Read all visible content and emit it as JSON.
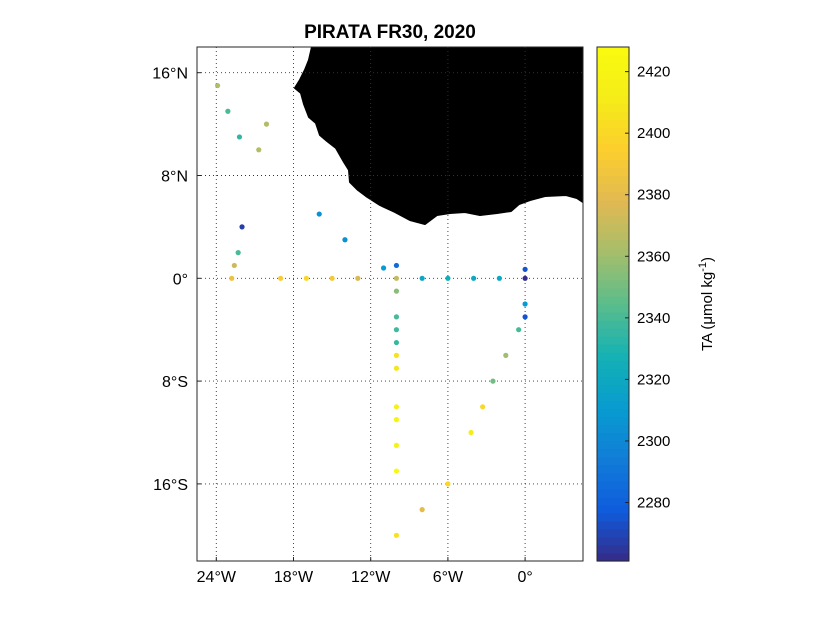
{
  "chart_data": {
    "type": "scatter",
    "title": "PIRATA FR30, 2020",
    "xlabel": "",
    "ylabel": "",
    "xlim": [
      -25.5,
      4.5
    ],
    "ylim": [
      -22,
      18
    ],
    "x_ticks": [
      -24,
      -18,
      -12,
      -6,
      0
    ],
    "x_tick_labels": [
      "24°W",
      "18°W",
      "12°W",
      "6°W",
      "0°"
    ],
    "y_ticks": [
      16,
      8,
      0,
      -8,
      -16
    ],
    "y_tick_labels": [
      "16°N",
      "8°N",
      "0°",
      "8°S",
      "16°S"
    ],
    "grid": true,
    "land_color": "#b3b3b3",
    "colorbar": {
      "label": "TA (μmol kg",
      "label_exp": "-1",
      "label_end": ")",
      "range": [
        2261,
        2428
      ],
      "ticks": [
        2280,
        2300,
        2320,
        2340,
        2360,
        2380,
        2400,
        2420
      ],
      "tick_labels": [
        "2280",
        "2300",
        "2320",
        "2340",
        "2360",
        "2380",
        "2400",
        "2420"
      ],
      "colormap": "parula"
    },
    "points": [
      {
        "lon": -23.9,
        "lat": 15.0,
        "ta": 2365
      },
      {
        "lon": -23.1,
        "lat": 13.0,
        "ta": 2340
      },
      {
        "lon": -22.2,
        "lat": 11.0,
        "ta": 2335
      },
      {
        "lon": -20.1,
        "lat": 12.0,
        "ta": 2365
      },
      {
        "lon": -20.7,
        "lat": 10.0,
        "ta": 2365
      },
      {
        "lon": -22.0,
        "lat": 4.0,
        "ta": 2268
      },
      {
        "lon": -22.3,
        "lat": 2.0,
        "ta": 2340
      },
      {
        "lon": -22.6,
        "lat": 1.0,
        "ta": 2372
      },
      {
        "lon": -22.8,
        "lat": 0.0,
        "ta": 2385
      },
      {
        "lon": -19.0,
        "lat": 0.0,
        "ta": 2392
      },
      {
        "lon": -17.0,
        "lat": 0.0,
        "ta": 2400
      },
      {
        "lon": -15.0,
        "lat": 0.0,
        "ta": 2390
      },
      {
        "lon": -13.0,
        "lat": 0.0,
        "ta": 2375
      },
      {
        "lon": -16.0,
        "lat": 5.0,
        "ta": 2305
      },
      {
        "lon": -14.0,
        "lat": 3.0,
        "ta": 2305
      },
      {
        "lon": -11.0,
        "lat": 0.8,
        "ta": 2310
      },
      {
        "lon": -10.0,
        "lat": 1.0,
        "ta": 2285
      },
      {
        "lon": -10.0,
        "lat": 0.0,
        "ta": 2370
      },
      {
        "lon": -10.0,
        "lat": -1.0,
        "ta": 2355
      },
      {
        "lon": -10.0,
        "lat": -3.0,
        "ta": 2340
      },
      {
        "lon": -10.0,
        "lat": -4.0,
        "ta": 2338
      },
      {
        "lon": -10.0,
        "lat": -5.0,
        "ta": 2336
      },
      {
        "lon": -10.0,
        "lat": -6.0,
        "ta": 2405
      },
      {
        "lon": -10.0,
        "lat": -7.0,
        "ta": 2408
      },
      {
        "lon": -10.0,
        "lat": -10.0,
        "ta": 2418
      },
      {
        "lon": -10.0,
        "lat": -11.0,
        "ta": 2420
      },
      {
        "lon": -10.0,
        "lat": -13.0,
        "ta": 2418
      },
      {
        "lon": -10.0,
        "lat": -15.0,
        "ta": 2425
      },
      {
        "lon": -10.0,
        "lat": -20.0,
        "ta": 2405
      },
      {
        "lon": -8.0,
        "lat": 0.0,
        "ta": 2318
      },
      {
        "lon": -6.0,
        "lat": 0.0,
        "ta": 2325
      },
      {
        "lon": -4.0,
        "lat": 0.0,
        "ta": 2320
      },
      {
        "lon": -2.0,
        "lat": 0.0,
        "ta": 2320
      },
      {
        "lon": 0.0,
        "lat": 0.7,
        "ta": 2275
      },
      {
        "lon": 0.0,
        "lat": 0.0,
        "ta": 2262
      },
      {
        "lon": 0.0,
        "lat": -2.0,
        "ta": 2310
      },
      {
        "lon": 0.0,
        "lat": -3.0,
        "ta": 2275
      },
      {
        "lon": -0.5,
        "lat": -4.0,
        "ta": 2340
      },
      {
        "lon": -1.5,
        "lat": -6.0,
        "ta": 2360
      },
      {
        "lon": -2.5,
        "lat": -8.0,
        "ta": 2350
      },
      {
        "lon": -3.3,
        "lat": -10.0,
        "ta": 2400
      },
      {
        "lon": -4.2,
        "lat": -12.0,
        "ta": 2412
      },
      {
        "lon": -6.0,
        "lat": -16.0,
        "ta": 2400
      },
      {
        "lon": -8.0,
        "lat": -18.0,
        "ta": 2380
      }
    ]
  }
}
